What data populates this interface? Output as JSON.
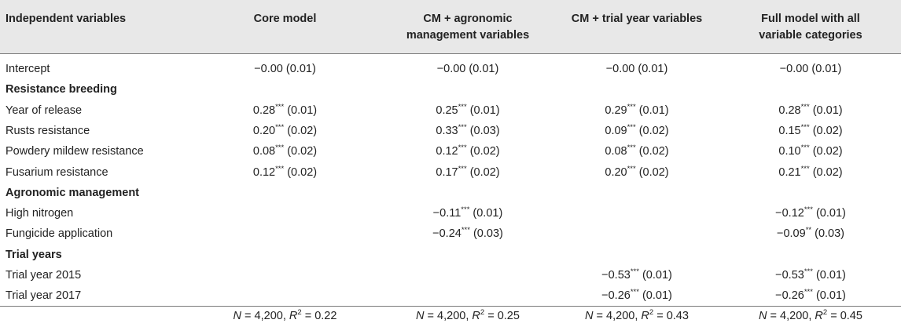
{
  "columns": [
    "Independent variables",
    "Core model",
    "CM + agronomic\nmanagement variables",
    "CM + trial year variables",
    "Full model with all\nvariable categories"
  ],
  "rows": [
    {
      "type": "row",
      "label": "Intercept",
      "cells": [
        {
          "v": "−0.00",
          "s": "",
          "e": "(0.01)"
        },
        {
          "v": "−0.00",
          "s": "",
          "e": "(0.01)"
        },
        {
          "v": "−0.00",
          "s": "",
          "e": "(0.01)"
        },
        {
          "v": "−0.00",
          "s": "",
          "e": "(0.01)"
        }
      ]
    },
    {
      "type": "section",
      "label": "Resistance breeding"
    },
    {
      "type": "row",
      "label": "Year of release",
      "cells": [
        {
          "v": "0.28",
          "s": "***",
          "e": "(0.01)"
        },
        {
          "v": "0.25",
          "s": "***",
          "e": "(0.01)"
        },
        {
          "v": "0.29",
          "s": "***",
          "e": "(0.01)"
        },
        {
          "v": "0.28",
          "s": "***",
          "e": "(0.01)"
        }
      ]
    },
    {
      "type": "row",
      "label": "Rusts resistance",
      "cells": [
        {
          "v": "0.20",
          "s": "***",
          "e": "(0.02)"
        },
        {
          "v": "0.33",
          "s": "***",
          "e": "(0.03)"
        },
        {
          "v": "0.09",
          "s": "***",
          "e": "(0.02)"
        },
        {
          "v": "0.15",
          "s": "***",
          "e": "(0.02)"
        }
      ]
    },
    {
      "type": "row",
      "label": "Powdery mildew resistance",
      "cells": [
        {
          "v": "0.08",
          "s": "***",
          "e": "(0.02)"
        },
        {
          "v": "0.12",
          "s": "***",
          "e": "(0.02)"
        },
        {
          "v": "0.08",
          "s": "***",
          "e": "(0.02)"
        },
        {
          "v": "0.10",
          "s": "***",
          "e": "(0.02)"
        }
      ]
    },
    {
      "type": "row",
      "label": "Fusarium resistance",
      "cells": [
        {
          "v": "0.12",
          "s": "***",
          "e": "(0.02)"
        },
        {
          "v": "0.17",
          "s": "***",
          "e": "(0.02)"
        },
        {
          "v": "0.20",
          "s": "***",
          "e": "(0.02)"
        },
        {
          "v": "0.21",
          "s": "***",
          "e": "(0.02)"
        }
      ]
    },
    {
      "type": "section",
      "label": "Agronomic management"
    },
    {
      "type": "row",
      "label": "High nitrogen",
      "cells": [
        null,
        {
          "v": "−0.11",
          "s": "***",
          "e": "(0.01)"
        },
        null,
        {
          "v": "−0.12",
          "s": "***",
          "e": "(0.01)"
        }
      ]
    },
    {
      "type": "row",
      "label": "Fungicide application",
      "cells": [
        null,
        {
          "v": "−0.24",
          "s": "***",
          "e": "(0.03)"
        },
        null,
        {
          "v": "−0.09",
          "s": "**",
          "e": "(0.03)"
        }
      ]
    },
    {
      "type": "section",
      "label": "Trial years"
    },
    {
      "type": "row",
      "label": "Trial year 2015",
      "cells": [
        null,
        null,
        {
          "v": "−0.53",
          "s": "***",
          "e": "(0.01)"
        },
        {
          "v": "−0.53",
          "s": "***",
          "e": "(0.01)"
        }
      ]
    },
    {
      "type": "row",
      "label": "Trial year 2017",
      "cells": [
        null,
        null,
        {
          "v": "−0.26",
          "s": "***",
          "e": "(0.01)"
        },
        {
          "v": "−0.26",
          "s": "***",
          "e": "(0.01)"
        }
      ]
    }
  ],
  "summary": [
    {
      "n": "4,200",
      "r2": "0.22"
    },
    {
      "n": "4,200",
      "r2": "0.25"
    },
    {
      "n": "4,200",
      "r2": "0.43"
    },
    {
      "n": "4,200",
      "r2": "0.45"
    }
  ]
}
